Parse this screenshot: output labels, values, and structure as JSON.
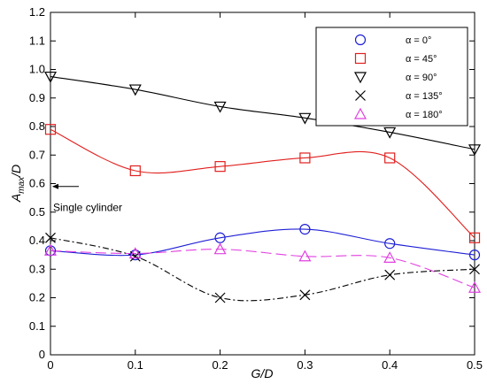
{
  "chart_data": {
    "type": "line",
    "xlabel": "G/D",
    "ylabel": "A_max/D",
    "xlim": [
      0,
      0.5
    ],
    "ylim": [
      0,
      1.2
    ],
    "xticks": [
      0,
      0.1,
      0.2,
      0.3,
      0.4,
      0.5
    ],
    "xtick_labels": [
      "0",
      "0.1",
      "0.2",
      "0.3",
      "0.4",
      "0.5"
    ],
    "yticks": [
      0,
      0.1,
      0.2,
      0.3,
      0.4,
      0.5,
      0.6,
      0.7,
      0.8,
      0.9,
      1.0,
      1.1,
      1.2
    ],
    "ytick_labels": [
      "0",
      "0.1",
      "0.2",
      "0.3",
      "0.4",
      "0.5",
      "0.6",
      "0.7",
      "0.8",
      "0.9",
      "1.0",
      "1.1",
      "1.2"
    ],
    "grid": false,
    "legend_position": "top-right",
    "x": [
      0,
      0.1,
      0.2,
      0.3,
      0.4,
      0.5
    ],
    "series": [
      {
        "name": "α = 0°",
        "marker": "circle",
        "color": "#1f1fd6",
        "dash": "solid",
        "values": [
          0.365,
          0.35,
          0.41,
          0.44,
          0.39,
          0.35
        ]
      },
      {
        "name": "α = 45°",
        "marker": "square",
        "color": "#e0201e",
        "dash": "solid",
        "values": [
          0.79,
          0.645,
          0.66,
          0.69,
          0.69,
          0.41
        ]
      },
      {
        "name": "α = 90°",
        "marker": "triangle-down",
        "color": "#000000",
        "dash": "solid",
        "values": [
          0.975,
          0.93,
          0.87,
          0.83,
          0.78,
          0.72
        ]
      },
      {
        "name": "α = 135°",
        "marker": "x",
        "color": "#000000",
        "dash": "dash-dot",
        "values": [
          0.41,
          0.345,
          0.2,
          0.21,
          0.28,
          0.3
        ]
      },
      {
        "name": "α = 180°",
        "marker": "triangle-up",
        "color": "#e040e0",
        "dash": "long-dash",
        "values": [
          0.365,
          0.355,
          0.37,
          0.345,
          0.34,
          0.235
        ]
      }
    ],
    "annotation": {
      "text": "Single cylinder",
      "y": 0.59
    }
  }
}
